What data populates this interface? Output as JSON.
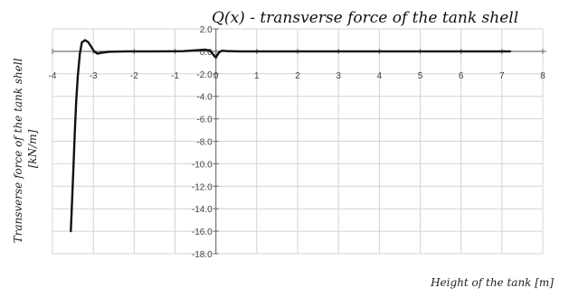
{
  "chart_data": {
    "type": "line",
    "title": "Q(x) - transverse force of the tank shell",
    "xlabel": "Height of the tank [m]",
    "ylabel": "Transverse force of the tank shell [kN/m]",
    "ylabel_lines": [
      "Transverse force of the tank shell",
      "[kN/m]"
    ],
    "xlim": [
      -4,
      8
    ],
    "ylim": [
      -18,
      2
    ],
    "x_ticks": [
      "-4",
      "-3",
      "-2",
      "-1",
      "0",
      "1",
      "2",
      "3",
      "4",
      "5",
      "6",
      "7",
      "8"
    ],
    "y_ticks": [
      "2.0",
      "0.0",
      "-2.0",
      "-4.0",
      "-6.0",
      "-8.0",
      "-10.0",
      "-12.0",
      "-14.0",
      "-16.0",
      "-18.0"
    ],
    "grid": true,
    "line_color": "#111111",
    "series": [
      {
        "x": [
          -3.55,
          -3.5,
          -3.45,
          -3.42,
          -3.38,
          -3.33,
          -3.28,
          -3.2,
          -3.12,
          -3.05,
          -2.98,
          -2.9,
          -2.8,
          -2.6,
          -2.2,
          -1.5,
          -0.8,
          -0.4,
          -0.25,
          -0.15,
          -0.08,
          -0.03,
          0.0,
          0.03,
          0.08,
          0.15,
          0.3,
          0.6,
          1.2,
          2.5,
          4.0,
          5.5,
          7.2
        ],
        "y": [
          -16.0,
          -11.5,
          -7.0,
          -4.5,
          -2.2,
          -0.2,
          0.8,
          1.0,
          0.8,
          0.4,
          0.0,
          -0.2,
          -0.12,
          -0.03,
          0.0,
          0.0,
          0.02,
          0.12,
          0.15,
          0.05,
          -0.2,
          -0.45,
          -0.55,
          -0.35,
          -0.08,
          0.06,
          0.02,
          0.0,
          0.0,
          0.0,
          0.0,
          0.0,
          0.0
        ]
      }
    ]
  }
}
